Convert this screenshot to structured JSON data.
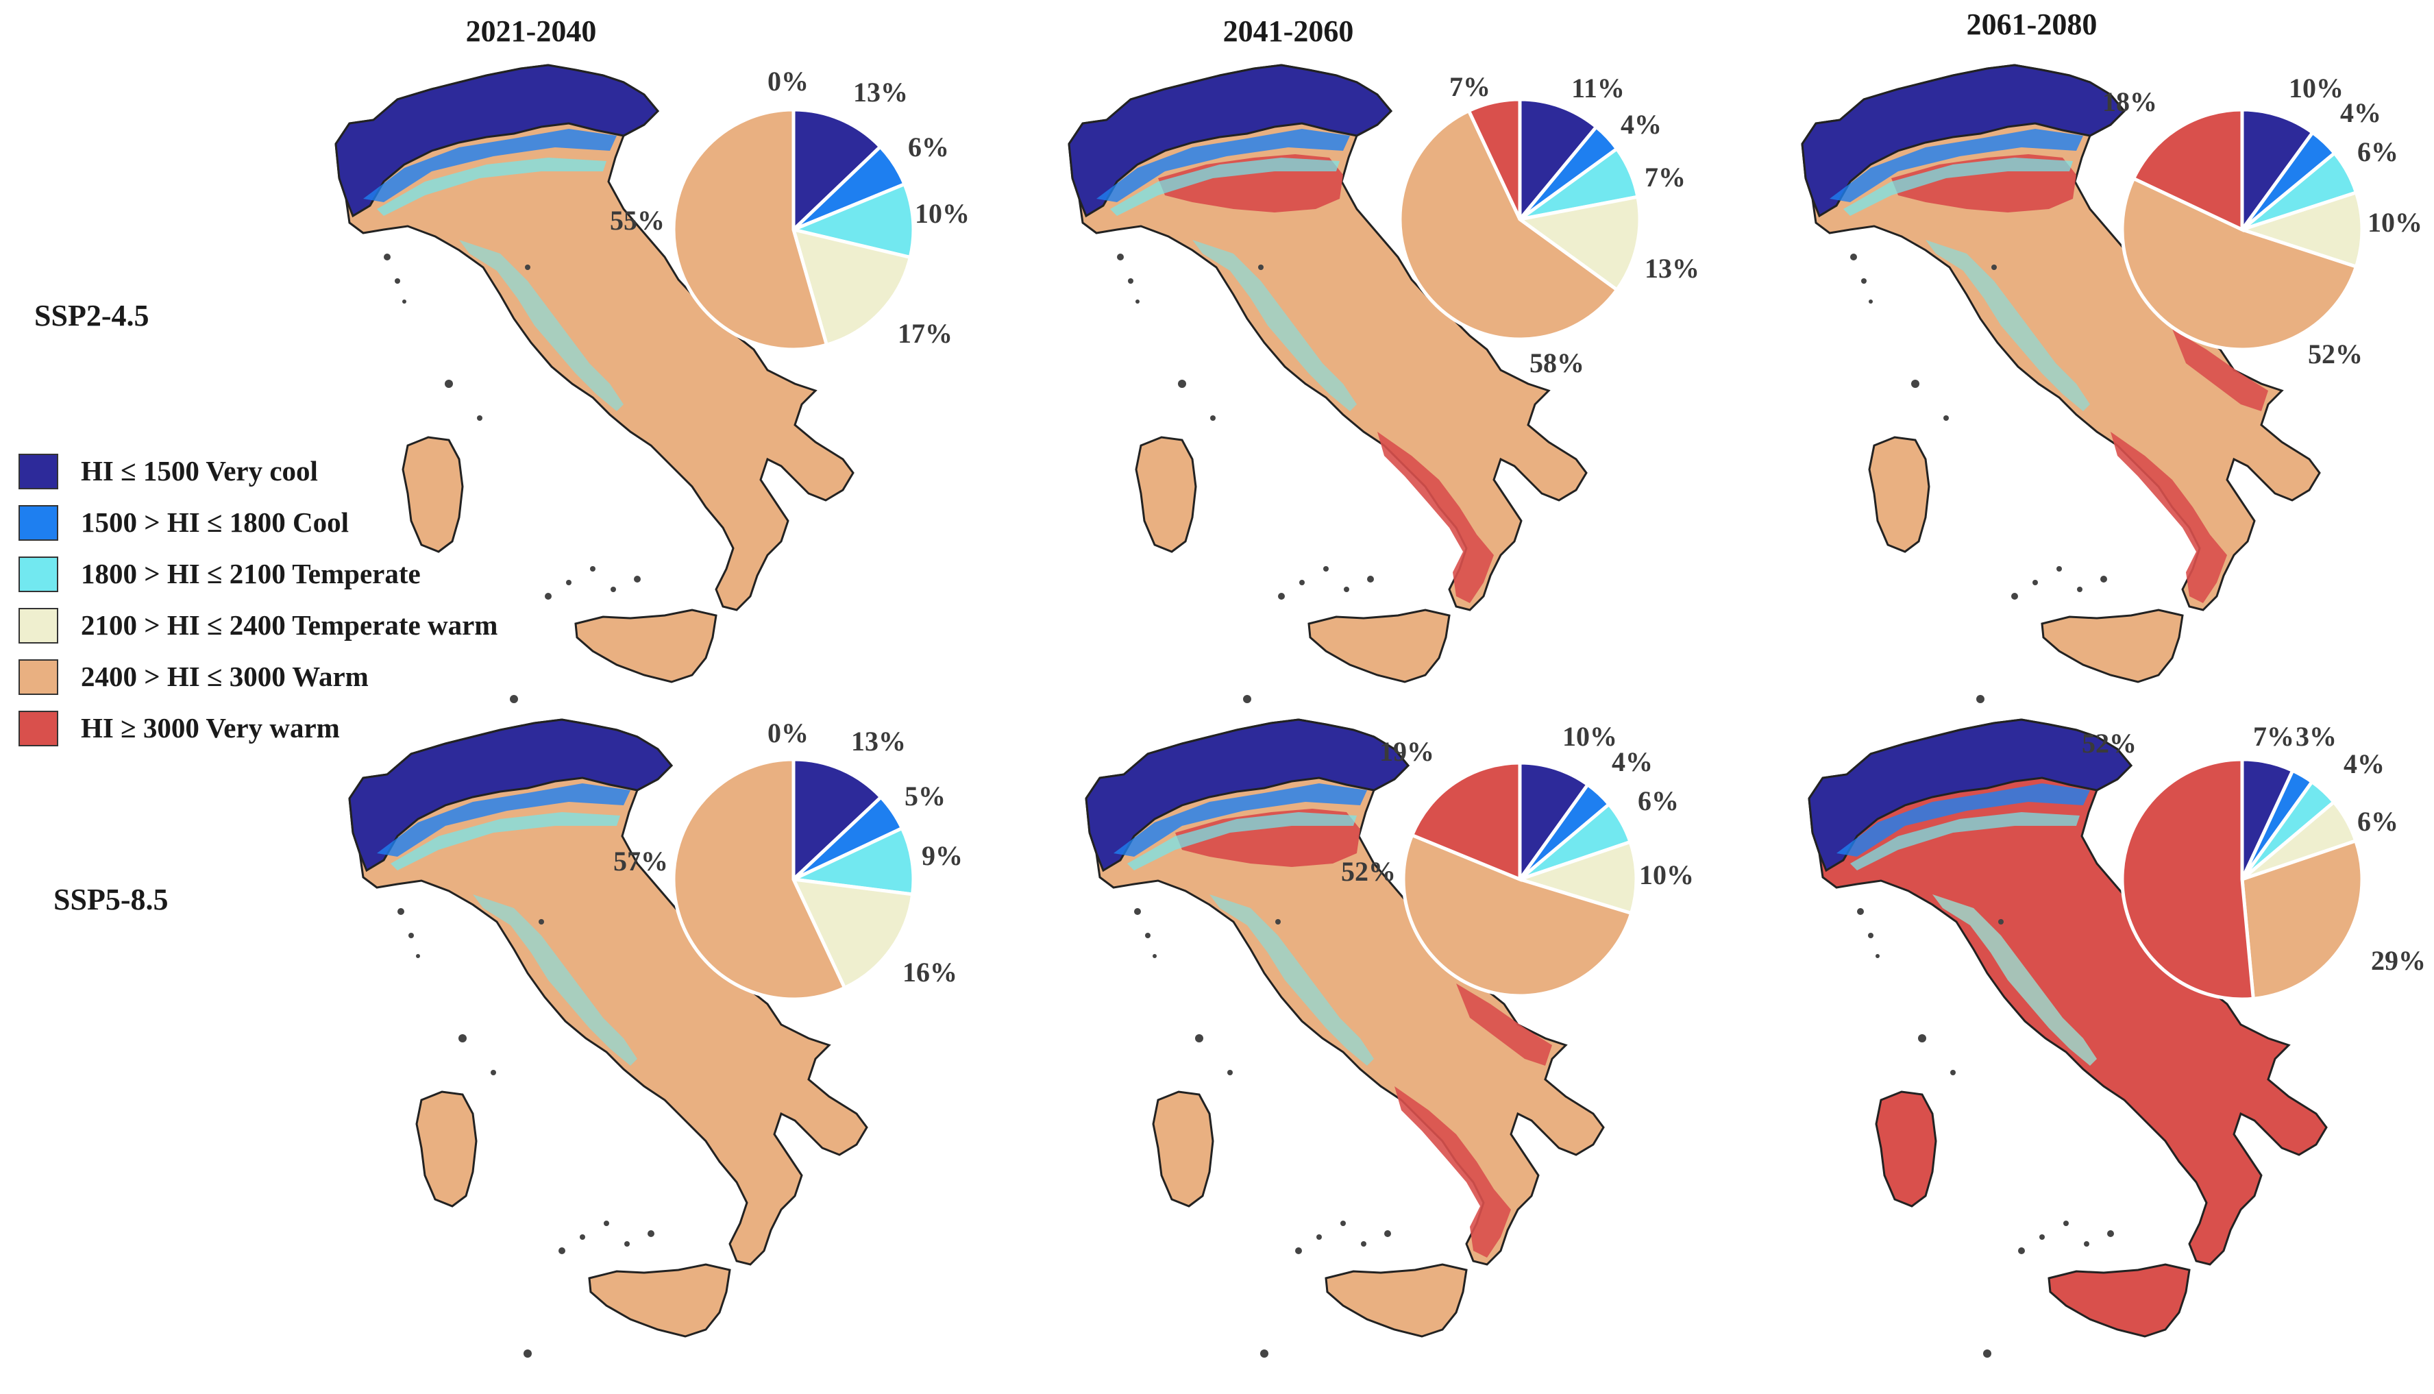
{
  "periods": [
    "2021-2040",
    "2041-2060",
    "2061-2080"
  ],
  "scenarios": [
    "SSP2-4.5",
    "SSP5-8.5"
  ],
  "legend": [
    {
      "label": "HI ≤ 1500 Very cool",
      "color": "#2d2a9a"
    },
    {
      "label": "1500 > HI ≤ 1800 Cool",
      "color": "#1e7ff0"
    },
    {
      "label": "1800 > HI ≤ 2100 Temperate",
      "color": "#72e8f0"
    },
    {
      "label": "2100 > HI ≤ 2400 Temperate warm",
      "color": "#efefcf"
    },
    {
      "label": "2400 > HI ≤ 3000 Warm",
      "color": "#e9b081"
    },
    {
      "label": "HI ≥ 3000 Very warm",
      "color": "#d9504c"
    }
  ],
  "chart_data": [
    {
      "type": "pie",
      "scenario": "SSP2-4.5",
      "period": "2021-2040",
      "values": [
        13,
        6,
        10,
        17,
        55,
        0
      ],
      "labels": [
        "13%",
        "6%",
        "10%",
        "17%",
        "55%",
        "0%"
      ]
    },
    {
      "type": "pie",
      "scenario": "SSP2-4.5",
      "period": "2041-2060",
      "values": [
        11,
        4,
        7,
        13,
        58,
        7
      ],
      "labels": [
        "11%",
        "4%",
        "7%",
        "13%",
        "58%",
        "7%"
      ]
    },
    {
      "type": "pie",
      "scenario": "SSP2-4.5",
      "period": "2061-2080",
      "values": [
        10,
        4,
        6,
        10,
        52,
        18
      ],
      "labels": [
        "10%",
        "4%",
        "6%",
        "10%",
        "52%",
        "18%"
      ]
    },
    {
      "type": "pie",
      "scenario": "SSP5-8.5",
      "period": "2021-2040",
      "values": [
        13,
        5,
        9,
        16,
        57,
        0
      ],
      "labels": [
        "13%",
        "5%",
        "9%",
        "16%",
        "57%",
        "0%"
      ]
    },
    {
      "type": "pie",
      "scenario": "SSP5-8.5",
      "period": "2041-2060",
      "values": [
        10,
        4,
        6,
        10,
        52,
        19
      ],
      "labels": [
        "10%",
        "4%",
        "6%",
        "10%",
        "52%",
        "19%"
      ]
    },
    {
      "type": "pie",
      "scenario": "SSP5-8.5",
      "period": "2061-2080",
      "values": [
        7,
        3,
        4,
        6,
        29,
        52
      ],
      "labels": [
        "7%",
        "3%",
        "4%",
        "6%",
        "29%",
        "52%"
      ]
    }
  ],
  "maps": [
    {
      "scenario": "SSP2-4.5",
      "period": "2021-2040",
      "dominant": "warm",
      "very_warm_extent": "minimal"
    },
    {
      "scenario": "SSP2-4.5",
      "period": "2041-2060",
      "dominant": "warm",
      "very_warm_extent": "po-valley-and-south-coasts"
    },
    {
      "scenario": "SSP2-4.5",
      "period": "2061-2080",
      "dominant": "warm",
      "very_warm_extent": "po-valley-and-south-widespread"
    },
    {
      "scenario": "SSP5-8.5",
      "period": "2021-2040",
      "dominant": "warm",
      "very_warm_extent": "minimal"
    },
    {
      "scenario": "SSP5-8.5",
      "period": "2041-2060",
      "dominant": "warm",
      "very_warm_extent": "po-valley-and-south-widespread"
    },
    {
      "scenario": "SSP5-8.5",
      "period": "2061-2080",
      "dominant": "very-warm",
      "very_warm_extent": "most-of-country"
    }
  ]
}
